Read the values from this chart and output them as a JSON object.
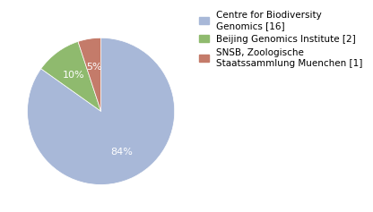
{
  "slices": [
    84,
    10,
    5
  ],
  "labels": [
    "Centre for Biodiversity\nGenomics [16]",
    "Beijing Genomics Institute [2]",
    "SNSB, Zoologische\nStaatssammlung Muenchen [1]"
  ],
  "colors": [
    "#a8b8d8",
    "#8fba6e",
    "#c47b6a"
  ],
  "pct_labels": [
    "84%",
    "10%",
    "5%"
  ],
  "startangle": 90,
  "background_color": "#ffffff",
  "legend_fontsize": 7.5,
  "pct_fontsize": 8.0
}
